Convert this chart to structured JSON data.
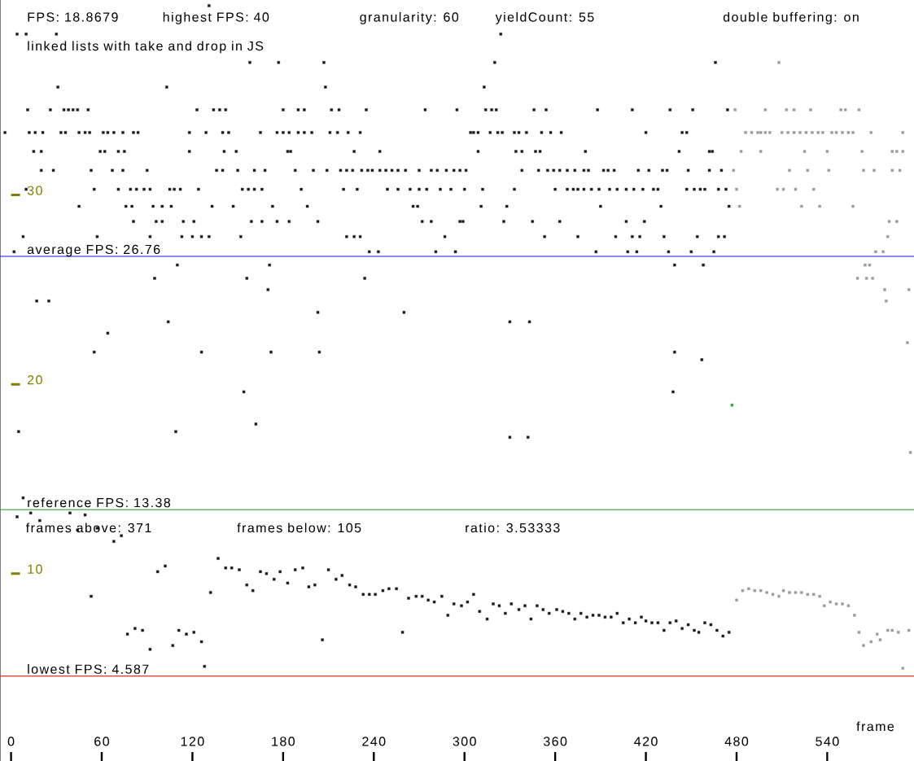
{
  "chart_data": {
    "type": "scatter",
    "title": "linked lists with take and drop in JS",
    "xlabel": "frame",
    "xlim": [
      -7.3,
      597.4
    ],
    "ylim": [
      0.1,
      40.3
    ],
    "xticks": [
      0,
      60,
      120,
      180,
      240,
      300,
      360,
      420,
      480,
      540
    ],
    "yticks": [
      10,
      20,
      30
    ],
    "marker": "square",
    "annotations": [
      "FPS: 18.8679",
      "highest FPS: 40",
      "granularity: 60",
      "yieldCount: 55",
      "double buffering: on",
      "frames above: 371",
      "frames below: 105",
      "ratio: 3.53333"
    ],
    "ref_lines": [
      {
        "axis": "y",
        "value": 26.76,
        "label": "average FPS: 26.76",
        "color": "#2020e0"
      },
      {
        "axis": "y",
        "value": 13.38,
        "label": "reference FPS: 13.38",
        "color": "#3a9a3a"
      },
      {
        "axis": "y",
        "value": 4.587,
        "label": "lowest FPS: 4.587",
        "color": "#ff3030"
      }
    ],
    "series": [
      {
        "color": "#1a1a1a",
        "x": [
          131,
          4,
          10,
          30,
          324,
          158,
          177,
          207,
          320,
          466,
          31,
          103,
          208,
          313,
          11,
          26,
          35,
          38,
          41,
          44,
          51,
          123,
          134,
          138,
          142,
          180,
          190,
          194,
          212,
          217,
          235,
          274,
          295,
          314,
          318,
          321,
          346,
          354,
          388,
          411,
          436,
          451,
          474,
          -4,
          12,
          16,
          21,
          33,
          36,
          45,
          49,
          52,
          61,
          64,
          68,
          74,
          81,
          84,
          118,
          129,
          140,
          144,
          165,
          176,
          180,
          184,
          190,
          194,
          199,
          211,
          216,
          223,
          231,
          304,
          306,
          309,
          317,
          322,
          325,
          333,
          336,
          341,
          351,
          357,
          364,
          420,
          444,
          447,
          15,
          20,
          59,
          62,
          71,
          75,
          118,
          141,
          149,
          183,
          185,
          227,
          244,
          309,
          334,
          338,
          347,
          350,
          380,
          442,
          462,
          464,
          20,
          28,
          53,
          67,
          74,
          90,
          136,
          140,
          150,
          161,
          168,
          188,
          200,
          209,
          218,
          222,
          226,
          232,
          236,
          239,
          244,
          248,
          252,
          256,
          261,
          270,
          278,
          282,
          288,
          293,
          297,
          301,
          338,
          349,
          355,
          359,
          363,
          368,
          373,
          379,
          382,
          392,
          395,
          399,
          415,
          422,
          431,
          434,
          448,
          462,
          470,
          10,
          55,
          71,
          79,
          83,
          88,
          92,
          105,
          108,
          112,
          124,
          153,
          157,
          161,
          166,
          192,
          220,
          229,
          249,
          256,
          264,
          270,
          275,
          284,
          291,
          300,
          312,
          333,
          360,
          368,
          372,
          375,
          379,
          384,
          389,
          396,
          401,
          407,
          412,
          418,
          425,
          428,
          447,
          452,
          456,
          459,
          468,
          473,
          45,
          76,
          80,
          94,
          100,
          106,
          133,
          147,
          173,
          196,
          266,
          269,
          311,
          328,
          390,
          430,
          475,
          81,
          96,
          100,
          114,
          121,
          159,
          166,
          176,
          184,
          203,
          272,
          278,
          297,
          299,
          326,
          345,
          363,
          407,
          419,
          8,
          57,
          92,
          113,
          120,
          126,
          131,
          152,
          222,
          227,
          231,
          287,
          353,
          375,
          400,
          411,
          416,
          432,
          454,
          468,
          472,
          2,
          237,
          243,
          281,
          294,
          387,
          408,
          414,
          435,
          450,
          465,
          110,
          171,
          439,
          458,
          95,
          156,
          234,
          170,
          17,
          25,
          203,
          260,
          104,
          330,
          343,
          64,
          55,
          126,
          172,
          204,
          439,
          457,
          154,
          438,
          162,
          5,
          109,
          330,
          342,
          8,
          4,
          13,
          19,
          39,
          49,
          44,
          57,
          73,
          68,
          53,
          77,
          82,
          87,
          92,
          97,
          102,
          107,
          111,
          116,
          121,
          126,
          128,
          132,
          137,
          142,
          146,
          151,
          156,
          160,
          165,
          169,
          174,
          178,
          183,
          188,
          193,
          197,
          201,
          206,
          210,
          215,
          219,
          224,
          228,
          233,
          237,
          241,
          246,
          250,
          255,
          259,
          263,
          268,
          272,
          276,
          280,
          285,
          289,
          293,
          298,
          302,
          306,
          310,
          315,
          319,
          323,
          327,
          331,
          336,
          340,
          344,
          348,
          352,
          356,
          361,
          365,
          369,
          373,
          377,
          381,
          385,
          389,
          393,
          397,
          401,
          405,
          409,
          413,
          417,
          420,
          424,
          428,
          432,
          436,
          440,
          444,
          448,
          452,
          455,
          459,
          463,
          467,
          471,
          475
        ],
        "values": [
          40.0,
          38.5,
          38.5,
          38.5,
          38.5,
          37.0,
          37.0,
          37.0,
          37.0,
          37.0,
          35.7,
          35.7,
          35.7,
          35.7,
          34.5,
          34.5,
          34.5,
          34.5,
          34.5,
          34.5,
          34.5,
          34.5,
          34.5,
          34.5,
          34.5,
          34.5,
          34.5,
          34.5,
          34.5,
          34.5,
          34.5,
          34.5,
          34.5,
          34.5,
          34.5,
          34.5,
          34.5,
          34.5,
          34.5,
          34.5,
          34.5,
          34.5,
          34.5,
          33.3,
          33.3,
          33.3,
          33.3,
          33.3,
          33.3,
          33.3,
          33.3,
          33.3,
          33.3,
          33.3,
          33.3,
          33.3,
          33.3,
          33.3,
          33.3,
          33.3,
          33.3,
          33.3,
          33.3,
          33.3,
          33.3,
          33.3,
          33.3,
          33.3,
          33.3,
          33.3,
          33.3,
          33.3,
          33.3,
          33.3,
          33.3,
          33.3,
          33.3,
          33.3,
          33.3,
          33.3,
          33.3,
          33.3,
          33.3,
          33.3,
          33.3,
          33.3,
          33.3,
          33.3,
          32.3,
          32.3,
          32.3,
          32.3,
          32.3,
          32.3,
          32.3,
          32.3,
          32.3,
          32.3,
          32.3,
          32.3,
          32.3,
          32.3,
          32.3,
          32.3,
          32.3,
          32.3,
          32.3,
          32.3,
          32.3,
          32.3,
          31.3,
          31.3,
          31.3,
          31.3,
          31.3,
          31.3,
          31.3,
          31.3,
          31.3,
          31.3,
          31.3,
          31.3,
          31.3,
          31.3,
          31.3,
          31.3,
          31.3,
          31.3,
          31.3,
          31.3,
          31.3,
          31.3,
          31.3,
          31.3,
          31.3,
          31.3,
          31.3,
          31.3,
          31.3,
          31.3,
          31.3,
          31.3,
          31.3,
          31.3,
          31.3,
          31.3,
          31.3,
          31.3,
          31.3,
          31.3,
          31.3,
          31.3,
          31.3,
          31.3,
          31.3,
          31.3,
          31.3,
          31.3,
          31.3,
          31.3,
          31.3,
          30.3,
          30.3,
          30.3,
          30.3,
          30.3,
          30.3,
          30.3,
          30.3,
          30.3,
          30.3,
          30.3,
          30.3,
          30.3,
          30.3,
          30.3,
          30.3,
          30.3,
          30.3,
          30.3,
          30.3,
          30.3,
          30.3,
          30.3,
          30.3,
          30.3,
          30.3,
          30.3,
          30.3,
          30.3,
          30.3,
          30.3,
          30.3,
          30.3,
          30.3,
          30.3,
          30.3,
          30.3,
          30.3,
          30.3,
          30.3,
          30.3,
          30.3,
          30.3,
          30.3,
          30.3,
          30.3,
          30.3,
          30.3,
          29.4,
          29.4,
          29.4,
          29.4,
          29.4,
          29.4,
          29.4,
          29.4,
          29.4,
          29.4,
          29.4,
          29.4,
          29.4,
          29.4,
          29.4,
          29.4,
          29.4,
          28.6,
          28.6,
          28.6,
          28.6,
          28.6,
          28.6,
          28.6,
          28.6,
          28.6,
          28.6,
          28.6,
          28.6,
          28.6,
          28.6,
          28.6,
          28.6,
          28.6,
          28.6,
          28.6,
          27.8,
          27.8,
          27.8,
          27.8,
          27.8,
          27.8,
          27.8,
          27.8,
          27.8,
          27.8,
          27.8,
          27.8,
          27.8,
          27.8,
          27.8,
          27.8,
          27.8,
          27.8,
          27.8,
          27.8,
          27.8,
          27.0,
          27.0,
          27.0,
          27.0,
          27.0,
          27.0,
          27.0,
          27.0,
          27.0,
          27.0,
          27.0,
          26.3,
          26.3,
          26.3,
          26.3,
          25.6,
          25.6,
          25.6,
          25.0,
          24.4,
          24.4,
          23.8,
          23.8,
          23.3,
          23.3,
          23.3,
          22.7,
          21.7,
          21.7,
          21.7,
          21.7,
          21.7,
          21.3,
          19.6,
          19.6,
          17.9,
          17.5,
          17.5,
          17.2,
          17.2,
          14.0,
          13.0,
          13.2,
          12.8,
          13.2,
          13.1,
          12.3,
          12.4,
          12.0,
          11.7,
          8.8,
          6.8,
          7.1,
          7.0,
          6.0,
          10.1,
          10.4,
          6.2,
          7.0,
          6.8,
          6.9,
          6.4,
          5.1,
          9.0,
          10.8,
          10.3,
          10.3,
          10.2,
          9.4,
          9.1,
          10.1,
          10.0,
          9.7,
          10.1,
          9.5,
          10.2,
          10.3,
          9.3,
          9.4,
          6.5,
          10.2,
          9.7,
          9.9,
          9.4,
          9.3,
          8.9,
          8.9,
          8.9,
          9.1,
          9.2,
          9.2,
          6.9,
          8.7,
          8.8,
          8.8,
          8.6,
          8.5,
          8.8,
          7.8,
          8.4,
          8.3,
          8.5,
          8.9,
          8.0,
          7.6,
          8.4,
          8.3,
          7.9,
          8.4,
          8.1,
          8.3,
          7.6,
          8.3,
          8.1,
          7.9,
          8.1,
          8.0,
          7.9,
          7.6,
          7.9,
          7.7,
          7.8,
          7.8,
          7.7,
          7.7,
          7.9,
          7.4,
          7.6,
          7.4,
          7.7,
          7.5,
          7.4,
          7.4,
          7.0,
          7.4,
          7.5,
          7.1,
          7.3,
          7.0,
          6.9,
          7.4,
          7.3,
          7.0,
          6.7,
          6.9
        ]
      },
      {
        "color": "#9a9a9a",
        "x": [
          508,
          479,
          499,
          513,
          518,
          529,
          549,
          552,
          561,
          486,
          490,
          494,
          496,
          499,
          502,
          510,
          514,
          518,
          522,
          526,
          530,
          534,
          537,
          543,
          546,
          550,
          554,
          557,
          569,
          590,
          483,
          496,
          525,
          540,
          563,
          583,
          586,
          590,
          478,
          515,
          527,
          541,
          564,
          571,
          583,
          588,
          480,
          507,
          511,
          519,
          531,
          482,
          523,
          535,
          557,
          581,
          586,
          580,
          572,
          577,
          565,
          568,
          560,
          566,
          570,
          578,
          594,
          579,
          593,
          595,
          480,
          484,
          488,
          492,
          496,
          500,
          504,
          508,
          511,
          515,
          519,
          523,
          527,
          531,
          535,
          538,
          542,
          546,
          550,
          554,
          558,
          561,
          564,
          569,
          573,
          575,
          580,
          583,
          587,
          590,
          594
        ],
        "values": [
          37.0,
          34.5,
          34.5,
          34.5,
          34.5,
          34.5,
          34.5,
          34.5,
          34.5,
          33.3,
          33.3,
          33.3,
          33.3,
          33.3,
          33.3,
          33.3,
          33.3,
          33.3,
          33.3,
          33.3,
          33.3,
          33.3,
          33.3,
          33.3,
          33.3,
          33.3,
          33.3,
          33.3,
          33.3,
          33.3,
          32.3,
          32.3,
          32.3,
          32.3,
          32.3,
          32.3,
          32.3,
          32.3,
          31.3,
          31.3,
          31.3,
          31.3,
          31.3,
          31.3,
          31.3,
          31.3,
          30.3,
          30.3,
          30.3,
          30.3,
          30.3,
          29.4,
          29.4,
          29.4,
          29.4,
          28.6,
          28.6,
          27.8,
          27.0,
          27.0,
          26.3,
          26.3,
          25.6,
          25.6,
          25.6,
          25.0,
          25.0,
          24.4,
          22.2,
          16.4,
          8.6,
          9.1,
          9.2,
          9.1,
          9.1,
          9.0,
          8.9,
          8.8,
          9.1,
          9.0,
          9.0,
          9.0,
          8.9,
          8.9,
          8.8,
          8.3,
          8.5,
          8.4,
          8.4,
          8.3,
          7.8,
          6.9,
          6.2,
          6.4,
          6.8,
          6.5,
          7.0,
          7.0,
          6.9,
          5.0,
          7.0
        ]
      },
      {
        "color": "#2fa82f",
        "x": [
          477
        ],
        "values": [
          18.9
        ]
      }
    ]
  }
}
